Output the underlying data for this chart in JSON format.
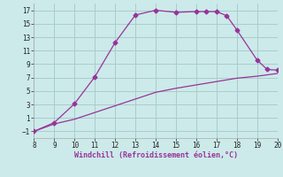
{
  "x_upper": [
    8,
    9,
    10,
    11,
    12,
    13,
    14,
    15,
    16,
    16.5,
    17,
    17.5,
    18,
    19,
    19.5,
    20
  ],
  "y_upper": [
    -1,
    0.3,
    3.1,
    7.1,
    12.2,
    16.3,
    17.0,
    16.7,
    16.8,
    16.8,
    16.8,
    16.2,
    14.1,
    9.6,
    8.2,
    8.1
  ],
  "x_lower": [
    8,
    9,
    10,
    11,
    12,
    13,
    14,
    15,
    16,
    17,
    18,
    19,
    20
  ],
  "y_lower": [
    -1,
    0.1,
    0.8,
    1.8,
    2.8,
    3.8,
    4.8,
    5.4,
    5.9,
    6.4,
    6.9,
    7.2,
    7.6
  ],
  "line_color": "#993399",
  "bg_color": "#cceaea",
  "grid_color": "#aacccc",
  "xlabel": "Windchill (Refroidissement éolien,°C)",
  "xlabel_color": "#993399",
  "xlim": [
    8,
    20
  ],
  "ylim": [
    -2,
    18
  ],
  "xticks": [
    8,
    9,
    10,
    11,
    12,
    13,
    14,
    15,
    16,
    17,
    18,
    19,
    20
  ],
  "yticks": [
    -1,
    1,
    3,
    5,
    7,
    9,
    11,
    13,
    15,
    17
  ],
  "tick_label_size": 5.5,
  "xlabel_size": 6.0,
  "marker": "D",
  "marker_size": 2.5
}
